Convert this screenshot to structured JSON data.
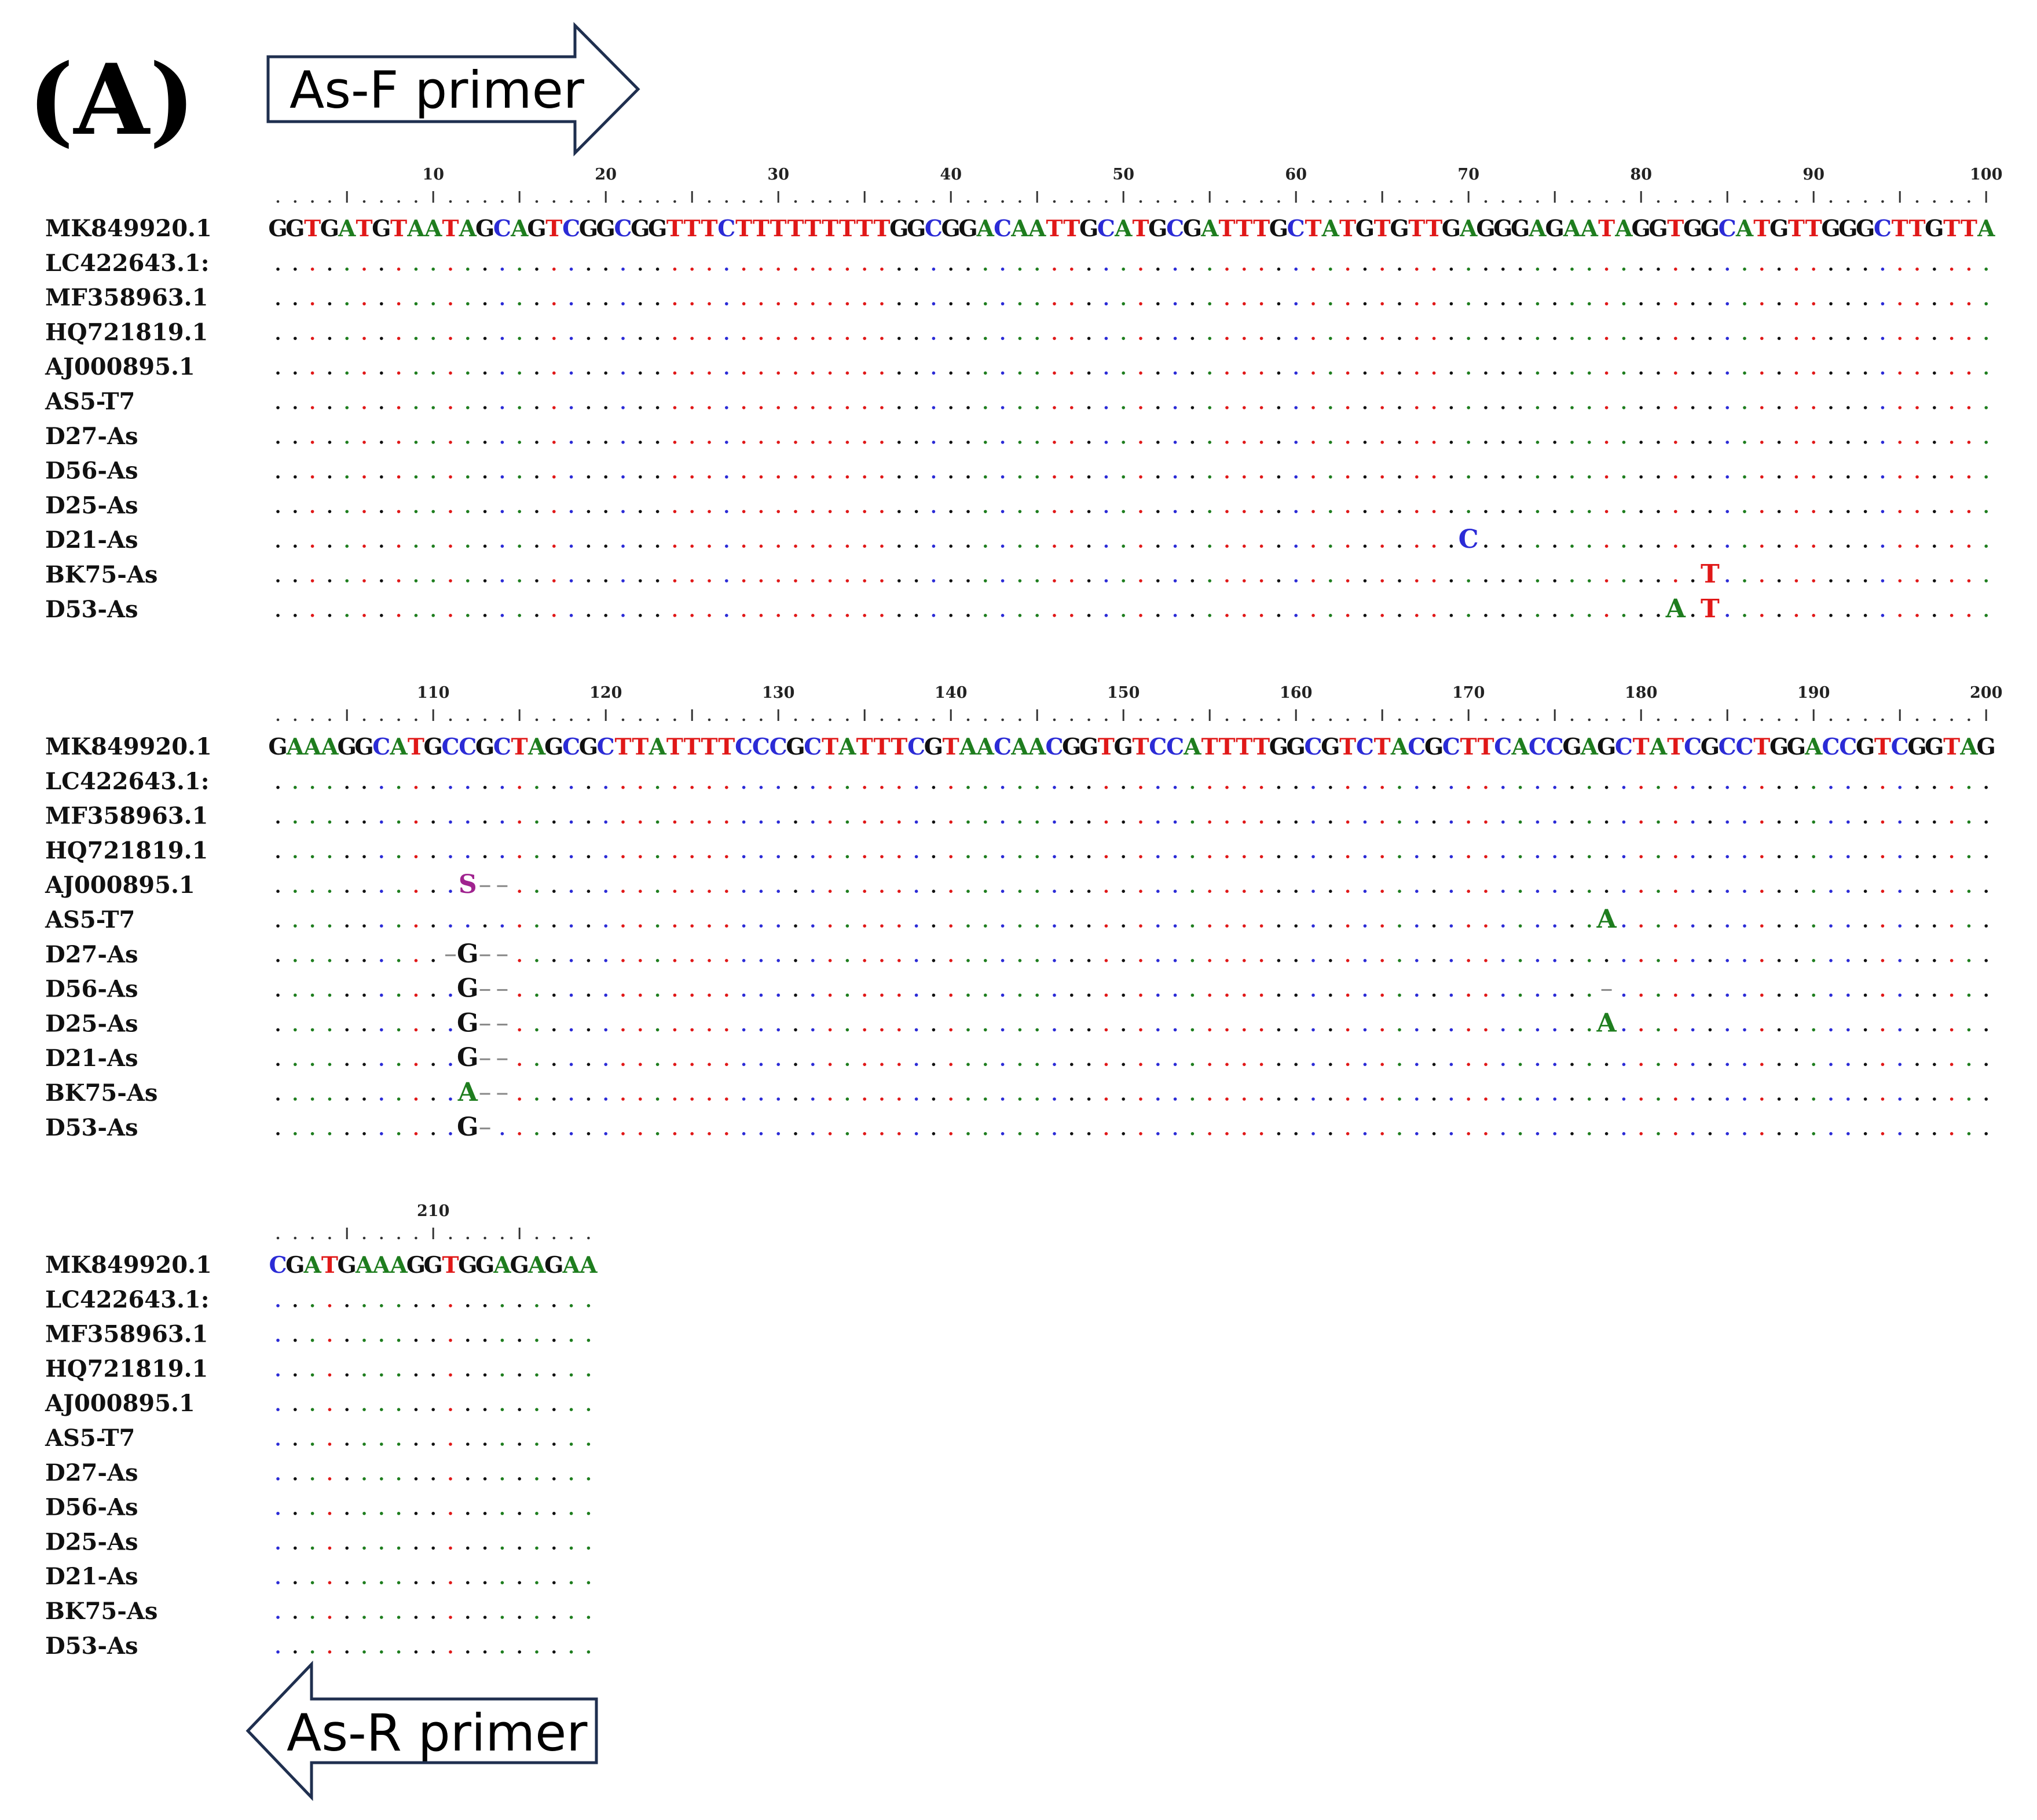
{
  "panel_label": "(A)",
  "forward_primer": {
    "label": "As-F primer"
  },
  "reverse_primer": {
    "label": "As-R primer"
  },
  "colors": {
    "A": "#1e7d1e",
    "C": "#2b2bd6",
    "G": "#111111",
    "T": "#e01818",
    "S": "#a0238f",
    "gap": "#888888"
  },
  "sequence_names": [
    "MK849920.1",
    "LC422643.1:",
    "MF358963.1",
    "HQ721819.1",
    "AJ000895.1",
    "AS5-T7",
    "D27-As",
    "D56-As",
    "D25-As",
    "D21-As",
    "BK75-As",
    "D53-As"
  ],
  "reference_sequence": "GGTGATGTAATAGCAGTCGGCGGTTTCTTTTTTTTTGGCGGACAATTGCATGCGATTTGCTATGTGTTGAGGGAGAATAGGTGGCATGTTGGGCTTGTTAGAAAGGCATGCCGCTAGCGCTTATTTTCCCGCTATTTCGTAACAACGGTGTCCATTTTGGCGTCTACGCTTCACCGAGCTATCGCCTGGACCGTCGGTAGCGATGAAAGGTGGAGAGAA",
  "variants": [
    {
      "sequence": "D21-As",
      "position": 70,
      "base": "C"
    },
    {
      "sequence": "BK75-As",
      "position": 84,
      "base": "T"
    },
    {
      "sequence": "D53-As",
      "position": 82,
      "base": "A"
    },
    {
      "sequence": "D53-As",
      "position": 84,
      "base": "T"
    },
    {
      "sequence": "AJ000895.1",
      "position": 112,
      "base": "S"
    },
    {
      "sequence": "AJ000895.1",
      "position": 113,
      "base": "-"
    },
    {
      "sequence": "AJ000895.1",
      "position": 114,
      "base": "-"
    },
    {
      "sequence": "D27-As",
      "position": 111,
      "base": "-"
    },
    {
      "sequence": "D27-As",
      "position": 112,
      "base": "G"
    },
    {
      "sequence": "D27-As",
      "position": 113,
      "base": "-"
    },
    {
      "sequence": "D27-As",
      "position": 114,
      "base": "-"
    },
    {
      "sequence": "D56-As",
      "position": 112,
      "base": "G"
    },
    {
      "sequence": "D56-As",
      "position": 113,
      "base": "-"
    },
    {
      "sequence": "D56-As",
      "position": 114,
      "base": "-"
    },
    {
      "sequence": "D56-As",
      "position": 178,
      "base": "-"
    },
    {
      "sequence": "D25-As",
      "position": 112,
      "base": "G"
    },
    {
      "sequence": "D25-As",
      "position": 113,
      "base": "-"
    },
    {
      "sequence": "D25-As",
      "position": 114,
      "base": "-"
    },
    {
      "sequence": "D25-As",
      "position": 178,
      "base": "A"
    },
    {
      "sequence": "D21-As",
      "position": 112,
      "base": "G"
    },
    {
      "sequence": "D21-As",
      "position": 113,
      "base": "-"
    },
    {
      "sequence": "D21-As",
      "position": 114,
      "base": "-"
    },
    {
      "sequence": "BK75-As",
      "position": 112,
      "base": "A"
    },
    {
      "sequence": "BK75-As",
      "position": 113,
      "base": "-"
    },
    {
      "sequence": "BK75-As",
      "position": 114,
      "base": "-"
    },
    {
      "sequence": "D53-As",
      "position": 112,
      "base": "G"
    },
    {
      "sequence": "D53-As",
      "position": 113,
      "base": "-"
    },
    {
      "sequence": "AS5-T7",
      "position": 178,
      "base": "A"
    }
  ],
  "blocks": [
    {
      "start": 1,
      "end": 100,
      "tick_labels": [
        "10",
        "20",
        "30",
        "40",
        "50",
        "60",
        "70",
        "80",
        "90",
        "100"
      ]
    },
    {
      "start": 101,
      "end": 200,
      "tick_labels": [
        "110",
        "120",
        "130",
        "140",
        "150",
        "160",
        "170",
        "180",
        "190",
        "200"
      ]
    },
    {
      "start": 201,
      "end": 219,
      "tick_labels": [
        "210"
      ]
    }
  ]
}
